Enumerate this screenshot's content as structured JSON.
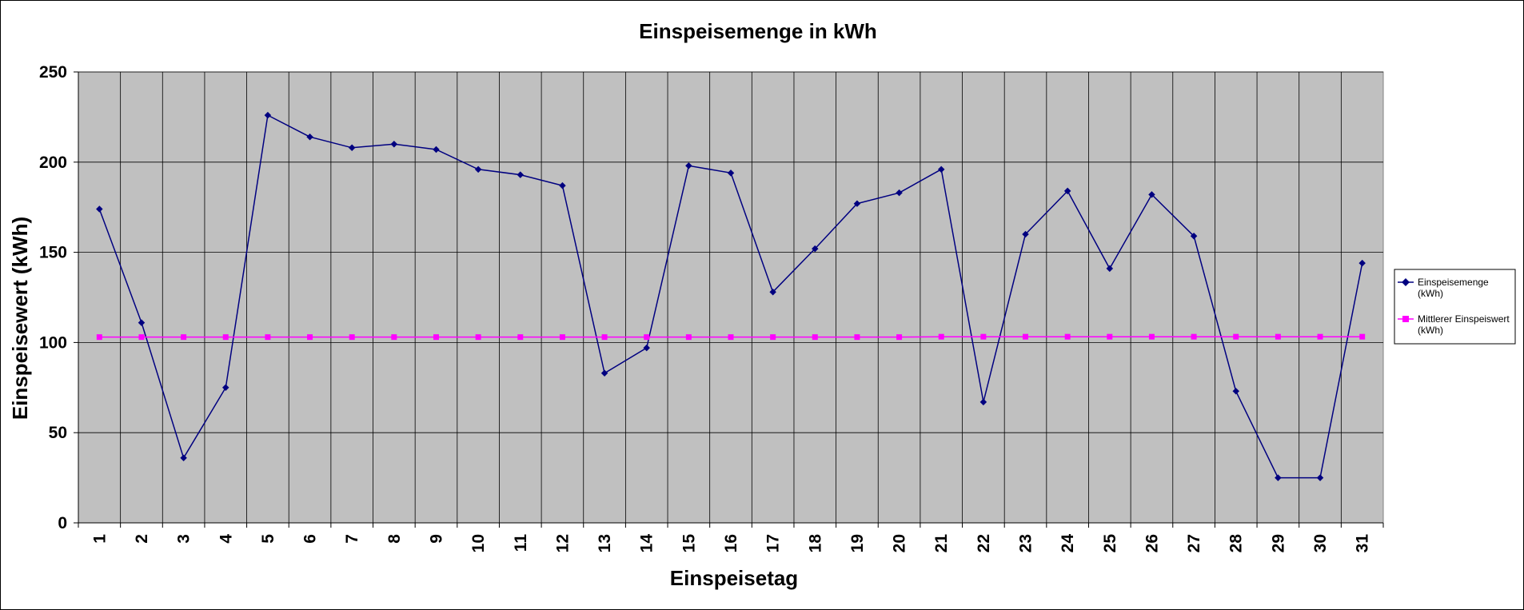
{
  "chart_data": {
    "type": "line",
    "title": "Einspeisemenge in kWh",
    "xlabel": "Einspeisetag",
    "ylabel": "Einspeisewert  (kWh)",
    "ylim": [
      0,
      250
    ],
    "yticks": [
      "0",
      "50",
      "100",
      "150",
      "200",
      "250"
    ],
    "categories": [
      "1",
      "2",
      "3",
      "4",
      "5",
      "6",
      "7",
      "8",
      "9",
      "10",
      "11",
      "12",
      "13",
      "14",
      "15",
      "16",
      "17",
      "18",
      "19",
      "20",
      "21",
      "22",
      "23",
      "24",
      "25",
      "26",
      "27",
      "28",
      "29",
      "30",
      "31"
    ],
    "grid": true,
    "legend_position": "right",
    "series": [
      {
        "name": "Einspeisemenge (kWh)",
        "color": "#000080",
        "marker": "diamond",
        "values": [
          174,
          111,
          36,
          75,
          226,
          214,
          208,
          210,
          207,
          196,
          193,
          187,
          83,
          97,
          198,
          194,
          128,
          152,
          177,
          183,
          196,
          67,
          160,
          184,
          141,
          182,
          159,
          73,
          25,
          25,
          144
        ]
      },
      {
        "name": "Mittlerer Einspeiswert (kWh)",
        "color": "#ff00ff",
        "marker": "square",
        "values": [
          103,
          103,
          103,
          103,
          103,
          103,
          103,
          103,
          103,
          103,
          103,
          103,
          103,
          103,
          103,
          103,
          103,
          103,
          103,
          103,
          103.2,
          103.2,
          103.2,
          103.2,
          103.2,
          103.2,
          103.2,
          103.2,
          103.2,
          103.2,
          103.2
        ]
      }
    ]
  },
  "legend": {
    "items": [
      {
        "line1": "Einspeisemenge",
        "line2": "(kWh)"
      },
      {
        "line1": "Mittlerer Einspeiswert",
        "line2": "(kWh)"
      }
    ]
  }
}
